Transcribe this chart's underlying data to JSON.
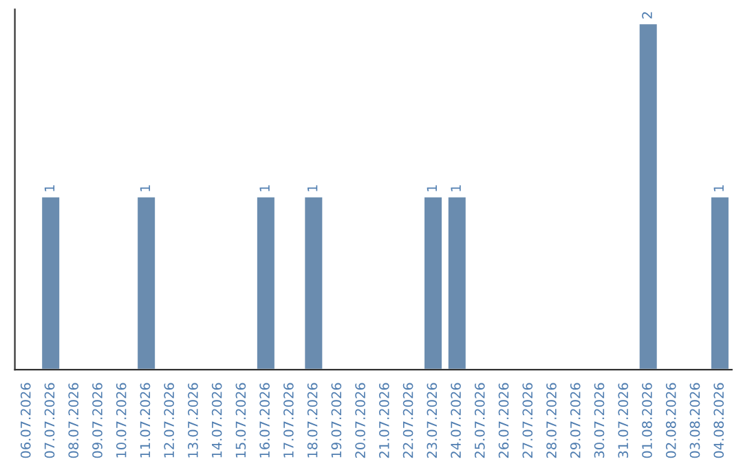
{
  "chart_data": {
    "type": "bar",
    "categories": [
      "06.07.2026",
      "07.07.2026",
      "08.07.2026",
      "09.07.2026",
      "10.07.2026",
      "11.07.2026",
      "12.07.2026",
      "13.07.2026",
      "14.07.2026",
      "15.07.2026",
      "16.07.2026",
      "17.07.2026",
      "18.07.2026",
      "19.07.2026",
      "20.07.2026",
      "21.07.2026",
      "22.07.2026",
      "23.07.2026",
      "24.07.2026",
      "25.07.2026",
      "26.07.2026",
      "27.07.2026",
      "28.07.2026",
      "29.07.2026",
      "30.07.2026",
      "31.07.2026",
      "01.08.2026",
      "02.08.2026",
      "03.08.2026",
      "04.08.2026"
    ],
    "values": [
      0,
      1,
      0,
      0,
      0,
      1,
      0,
      0,
      0,
      0,
      1,
      0,
      1,
      0,
      0,
      0,
      0,
      1,
      1,
      0,
      0,
      0,
      0,
      0,
      0,
      0,
      2,
      0,
      0,
      1
    ],
    "value_labels": [
      null,
      "1",
      null,
      null,
      null,
      "1",
      null,
      null,
      null,
      null,
      "1",
      null,
      "1",
      null,
      null,
      null,
      null,
      "1",
      "1",
      null,
      null,
      null,
      null,
      null,
      null,
      null,
      "2",
      null,
      null,
      "1"
    ],
    "color": "#6a8caf",
    "grid": false,
    "legend": false,
    "tick_labels": "x"
  }
}
